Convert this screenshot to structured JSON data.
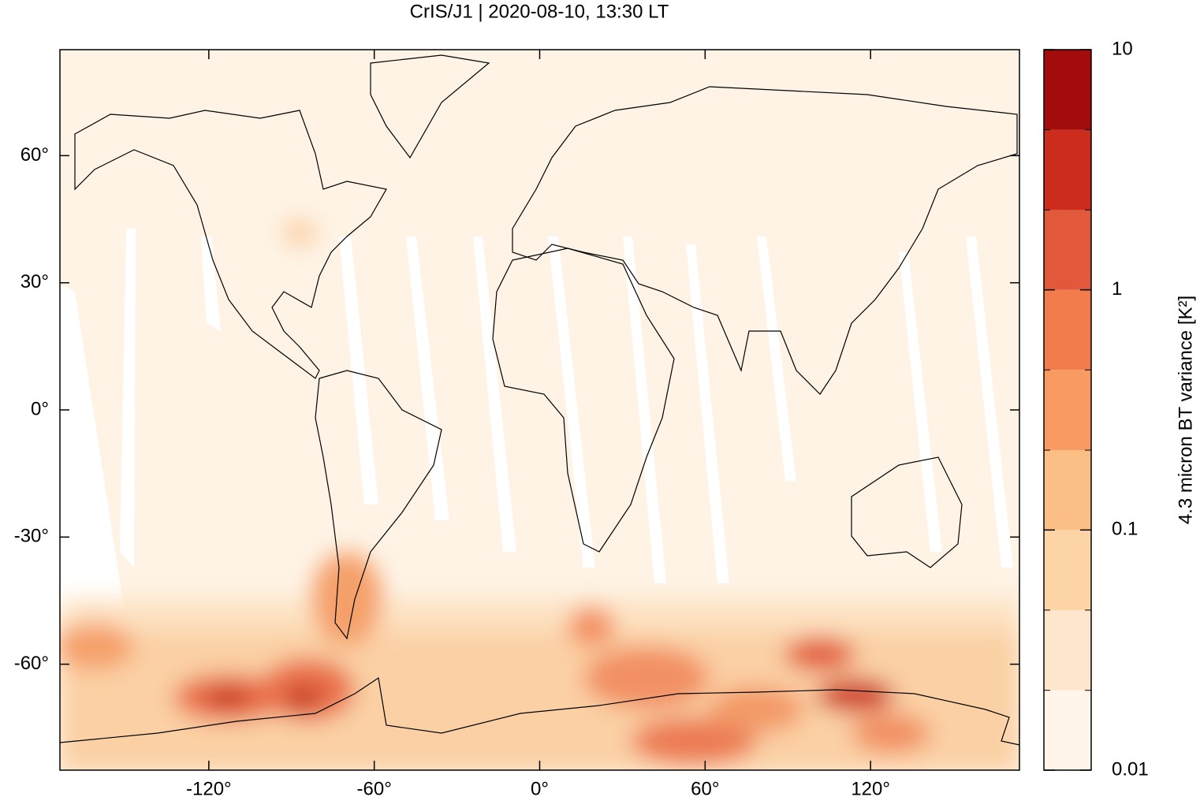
{
  "chart_data": {
    "type": "map",
    "title": "CrIS/J1 | 2020-08-10, 13:30 LT",
    "xlim": [
      -174,
      174
    ],
    "xticks": [
      {
        "value": -120,
        "label": "-120°"
      },
      {
        "value": -60,
        "label": "-60°"
      },
      {
        "value": 0,
        "label": "0°"
      },
      {
        "value": 60,
        "label": "60°"
      },
      {
        "value": 120,
        "label": "120°"
      }
    ],
    "ylim": [
      -85,
      85
    ],
    "yticks": [
      {
        "value": 60,
        "label": "60°"
      },
      {
        "value": 30,
        "label": "30°"
      },
      {
        "value": 0,
        "label": "0°"
      },
      {
        "value": -30,
        "label": "-30°"
      },
      {
        "value": -60,
        "label": "-60°"
      }
    ],
    "colorbar": {
      "label": "4.3 micron BT variance [K²]",
      "log_scale": true,
      "lim": [
        0.01,
        10
      ],
      "ticks": [
        10,
        1,
        0.1,
        0.01
      ],
      "levels": [
        0.01,
        0.0215,
        0.0464,
        0.1,
        0.215,
        0.464,
        1,
        2.15,
        4.64,
        10
      ],
      "colors": [
        "#fff5eb",
        "#fde6cc",
        "#fdd4a6",
        "#fbbf86",
        "#f99a63",
        "#f27c4b",
        "#e2583a",
        "#cc2c1e",
        "#a20c0c"
      ]
    }
  }
}
